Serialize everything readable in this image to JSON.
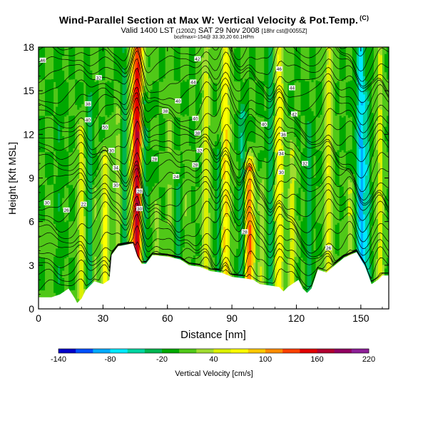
{
  "title": "Wind-Parallel Section at Max W: Vertical Velocity & Pot.Temp.",
  "title_mark": "(C)",
  "subtitle": "Valid 1400 LST",
  "subtitle_time": "(1200Z)",
  "subtitle_date": "SAT 29 Nov 2008",
  "subtitle_tag": "[18hr cst@0055Z]",
  "subtitle2": "bozfmax=-154@ 33.30,20 60.1HPm",
  "chart_data": {
    "type": "heatmap",
    "xlabel": "Distance [nm]",
    "ylabel": "Height [Kft MSL]",
    "xlim": [
      0,
      163
    ],
    "ylim": [
      0,
      18
    ],
    "x_ticks": [
      0,
      30,
      60,
      90,
      120,
      150
    ],
    "y_ticks": [
      0,
      3,
      6,
      9,
      12,
      15,
      18
    ],
    "colorbar": {
      "label": "Vertical Velocity [cm/s]",
      "min": -140,
      "max": 220,
      "step": 20,
      "tick_labels": [
        "-140",
        "-80",
        "-20",
        "40",
        "100",
        "160",
        "220"
      ],
      "colors": [
        "#0000c8",
        "#0050ff",
        "#00aaff",
        "#00e8ff",
        "#00d4a0",
        "#00b450",
        "#00a800",
        "#50c818",
        "#a0dc30",
        "#dcf000",
        "#ffff00",
        "#ffc800",
        "#ff8c00",
        "#ff4000",
        "#e00000",
        "#b00030",
        "#900060",
        "#8c1e96"
      ]
    },
    "background_w": 0,
    "updrafts": [
      {
        "x": 5,
        "ytop": 6.6,
        "w": 15
      },
      {
        "x": 20,
        "ytop": 12.0,
        "w": 55
      },
      {
        "x": 26,
        "ytop": 8.0,
        "w": 25
      },
      {
        "x": 31,
        "ytop": 10.0,
        "w": 70
      },
      {
        "x": 37,
        "ytop": 13.0,
        "w": 35
      },
      {
        "x": 46,
        "ytop": 18.0,
        "w": 170
      },
      {
        "x": 55,
        "ytop": 6.5,
        "w": 30
      },
      {
        "x": 61,
        "ytop": 15.0,
        "w": 25
      },
      {
        "x": 69,
        "ytop": 10.0,
        "w": 20
      },
      {
        "x": 78,
        "ytop": 18.0,
        "w": 55
      },
      {
        "x": 87,
        "ytop": 18.0,
        "w": 85
      },
      {
        "x": 98,
        "ytop": 9.5,
        "w": 125
      },
      {
        "x": 104,
        "ytop": 8.0,
        "w": 40
      },
      {
        "x": 112,
        "ytop": 18.0,
        "w": 80
      },
      {
        "x": 118,
        "ytop": 10.5,
        "w": 50
      },
      {
        "x": 135,
        "ytop": 18.0,
        "w": 60
      },
      {
        "x": 145,
        "ytop": 8.0,
        "w": 45
      },
      {
        "x": 159,
        "ytop": 18.0,
        "w": 50
      }
    ],
    "downdrafts": [
      {
        "x": 10,
        "ytop": 18.0,
        "w": -20
      },
      {
        "x": 24,
        "ytop": 14.0,
        "w": -40
      },
      {
        "x": 40,
        "ytop": 18.0,
        "w": -35
      },
      {
        "x": 49,
        "ytop": 14.0,
        "w": -70
      },
      {
        "x": 65,
        "ytop": 8.0,
        "w": -30
      },
      {
        "x": 84,
        "ytop": 10.5,
        "w": -35
      },
      {
        "x": 95,
        "ytop": 13.0,
        "w": -55
      },
      {
        "x": 108,
        "ytop": 18.0,
        "w": -40
      },
      {
        "x": 126,
        "ytop": 12.0,
        "w": -40
      },
      {
        "x": 150,
        "ytop": 18.0,
        "w": -85
      },
      {
        "x": 153,
        "ytop": 14.0,
        "w": -45
      }
    ],
    "terrain": [
      [
        0,
        0.8
      ],
      [
        6,
        0.8
      ],
      [
        10,
        1.0
      ],
      [
        14,
        1.4
      ],
      [
        17,
        0.7
      ],
      [
        18,
        0.4
      ],
      [
        20,
        0.7
      ],
      [
        22,
        1.3
      ],
      [
        26,
        1.9
      ],
      [
        30,
        1.7
      ],
      [
        33,
        2.0
      ],
      [
        34,
        3.7
      ],
      [
        37,
        4.3
      ],
      [
        44,
        4.5
      ],
      [
        46,
        3.6
      ],
      [
        48,
        3.1
      ],
      [
        50,
        3.1
      ],
      [
        53,
        3.7
      ],
      [
        60,
        3.6
      ],
      [
        66,
        3.4
      ],
      [
        70,
        3.0
      ],
      [
        75,
        2.9
      ],
      [
        80,
        2.6
      ],
      [
        85,
        2.5
      ],
      [
        90,
        2.2
      ],
      [
        96,
        2.1
      ],
      [
        100,
        2.0
      ],
      [
        103,
        1.7
      ],
      [
        108,
        1.6
      ],
      [
        112,
        1.5
      ],
      [
        114,
        1.2
      ],
      [
        116,
        1.5
      ],
      [
        121,
        2.0
      ],
      [
        123,
        1.4
      ],
      [
        125,
        1.1
      ],
      [
        127,
        1.4
      ],
      [
        130,
        2.7
      ],
      [
        134,
        2.5
      ],
      [
        138,
        3.0
      ],
      [
        142,
        3.5
      ],
      [
        148,
        3.9
      ],
      [
        152,
        2.9
      ],
      [
        155,
        1.7
      ],
      [
        158,
        2.0
      ],
      [
        160,
        2.3
      ],
      [
        163,
        2.3
      ]
    ],
    "theta_labels": [
      {
        "x": 2,
        "y": 17.1,
        "text": "46"
      },
      {
        "x": 28,
        "y": 15.9,
        "text": "32"
      },
      {
        "x": 23,
        "y": 14.1,
        "text": "38"
      },
      {
        "x": 23,
        "y": 13.0,
        "text": "40"
      },
      {
        "x": 31,
        "y": 12.5,
        "text": "50"
      },
      {
        "x": 34,
        "y": 10.9,
        "text": "30"
      },
      {
        "x": 36,
        "y": 9.7,
        "text": "34"
      },
      {
        "x": 36,
        "y": 8.5,
        "text": "30"
      },
      {
        "x": 4,
        "y": 7.3,
        "text": "30"
      },
      {
        "x": 13,
        "y": 6.8,
        "text": "26"
      },
      {
        "x": 21,
        "y": 7.2,
        "text": "22"
      },
      {
        "x": 47,
        "y": 8.1,
        "text": "20"
      },
      {
        "x": 47,
        "y": 6.9,
        "text": "30"
      },
      {
        "x": 59,
        "y": 13.6,
        "text": "38"
      },
      {
        "x": 74,
        "y": 17.2,
        "text": "42"
      },
      {
        "x": 72,
        "y": 15.6,
        "text": "44"
      },
      {
        "x": 65,
        "y": 14.3,
        "text": "40"
      },
      {
        "x": 73,
        "y": 13.1,
        "text": "40"
      },
      {
        "x": 74,
        "y": 12.1,
        "text": "38"
      },
      {
        "x": 75,
        "y": 10.9,
        "text": "32"
      },
      {
        "x": 73,
        "y": 9.9,
        "text": "28"
      },
      {
        "x": 64,
        "y": 9.1,
        "text": "24"
      },
      {
        "x": 54,
        "y": 10.3,
        "text": "28"
      },
      {
        "x": 112,
        "y": 16.5,
        "text": "46"
      },
      {
        "x": 118,
        "y": 15.2,
        "text": "44"
      },
      {
        "x": 119,
        "y": 13.4,
        "text": "42"
      },
      {
        "x": 105,
        "y": 12.7,
        "text": "40"
      },
      {
        "x": 114,
        "y": 12.0,
        "text": "36"
      },
      {
        "x": 113,
        "y": 10.7,
        "text": "34"
      },
      {
        "x": 124,
        "y": 10.0,
        "text": "32"
      },
      {
        "x": 113,
        "y": 9.4,
        "text": "30"
      },
      {
        "x": 96,
        "y": 5.3,
        "text": "28"
      },
      {
        "x": 135,
        "y": 4.2,
        "text": "26"
      }
    ]
  }
}
